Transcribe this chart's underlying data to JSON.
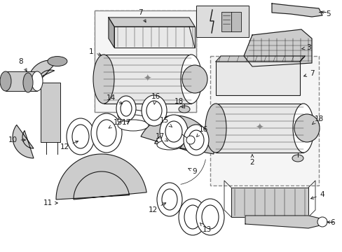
{
  "bg_color": "#ffffff",
  "line_color": "#1a1a1a",
  "gray_fill": "#cccccc",
  "light_fill": "#e8e8e8",
  "dark_fill": "#aaaaaa",
  "figsize": [
    4.89,
    3.6
  ],
  "dpi": 100
}
